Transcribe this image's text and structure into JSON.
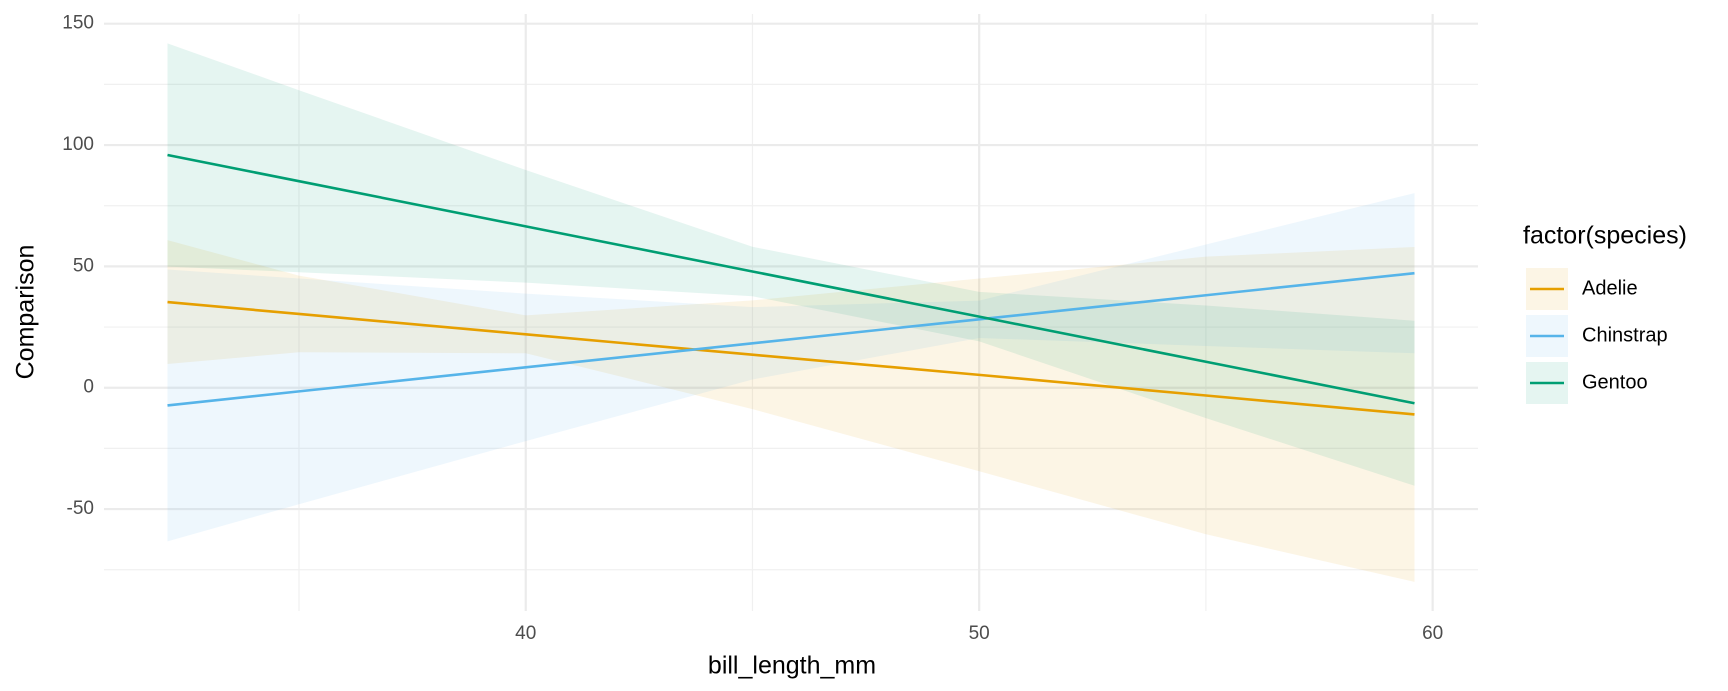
{
  "chart_data": {
    "type": "line",
    "x_label": "bill_length_mm",
    "y_label": "Comparison",
    "legend_title": "factor(species)",
    "legend_position": "right",
    "grid": true,
    "x": [
      32.1,
      35,
      40,
      45,
      50,
      55,
      59.6
    ],
    "series": [
      {
        "name": "Adelie",
        "color": "#E69F00",
        "values": [
          35.3,
          30.4,
          22.0,
          13.6,
          5.3,
          -3.2,
          -11
        ],
        "lower": [
          9.8,
          14.6,
          14.2,
          -8.8,
          -34.4,
          -60.4,
          -80
        ],
        "upper": [
          60.8,
          46.2,
          29.8,
          36.0,
          45.0,
          54.0,
          58
        ]
      },
      {
        "name": "Chinstrap",
        "color": "#56B4E9",
        "values": [
          -7.3,
          -1.5,
          8.4,
          18.3,
          28.2,
          38.1,
          47.2
        ],
        "lower": [
          -63.3,
          -48,
          -22,
          3.4,
          20.5,
          17.2,
          14.2
        ],
        "upper": [
          48.7,
          45,
          38.8,
          33.2,
          35.9,
          59,
          80.2
        ]
      },
      {
        "name": "Gentoo",
        "color": "#009E73",
        "values": [
          95.9,
          85.1,
          66.5,
          47.9,
          29.3,
          10.7,
          -6.4
        ],
        "lower": [
          49.9,
          47.6,
          43.3,
          37.7,
          19.1,
          -12.5,
          -40.4
        ],
        "upper": [
          141.9,
          122.6,
          89.7,
          58.1,
          39.5,
          33.9,
          27.6
        ]
      }
    ],
    "xlim": [
      30.7,
      61
    ],
    "ylim": [
      -92,
      154
    ],
    "xticks": [
      40,
      50,
      60
    ],
    "yticks": [
      -50,
      0,
      50,
      100,
      150
    ],
    "x_minor_ticks": [
      35,
      45,
      55
    ],
    "y_minor_ticks": [
      -75,
      -25,
      25,
      75,
      125
    ]
  }
}
